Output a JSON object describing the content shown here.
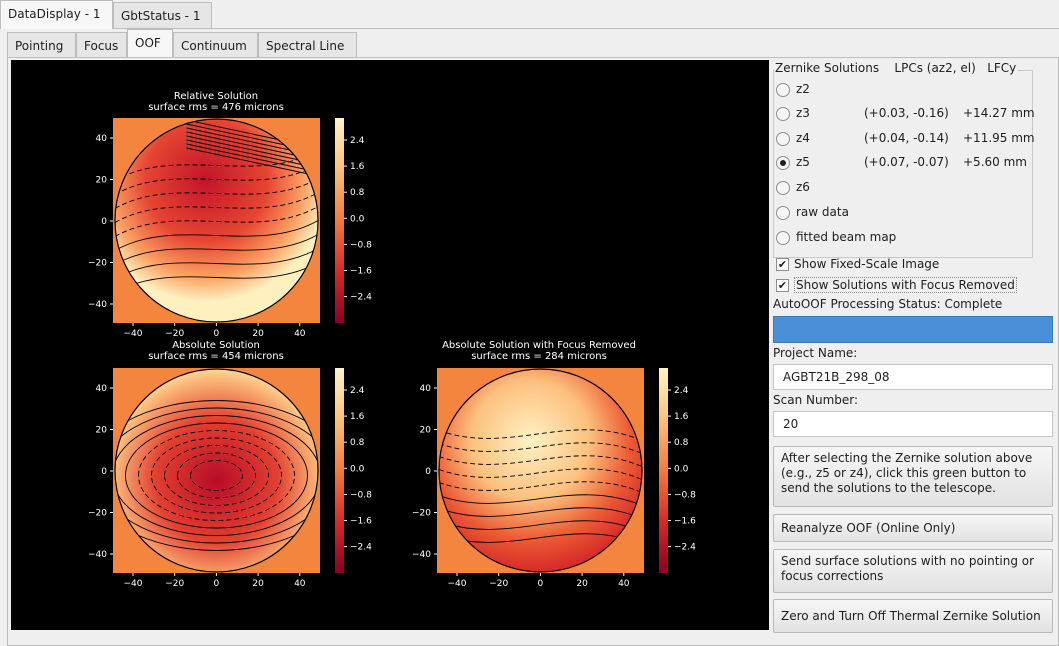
{
  "window_tabs": [
    {
      "label": "DataDisplay - 1"
    },
    {
      "label": "GbtStatus - 1"
    }
  ],
  "sub_tabs": [
    {
      "label": "Pointing"
    },
    {
      "label": "Focus"
    },
    {
      "label": "OOF"
    },
    {
      "label": "Continuum"
    },
    {
      "label": "Spectral Line"
    }
  ],
  "plots": [
    {
      "title": "Relative Solution",
      "subtitle": "surface rms = 476 microns"
    },
    {
      "title": "Absolute Solution",
      "subtitle": "surface rms = 454 microns"
    },
    {
      "title": "Absolute Solution with Focus Removed",
      "subtitle": "surface rms = 284 microns"
    }
  ],
  "axis_ticks": {
    "x": [
      "−40",
      "−20",
      "0",
      "20",
      "40"
    ],
    "y": [
      "40",
      "20",
      "0",
      "−20",
      "−40"
    ]
  },
  "colorbar_ticks": [
    "2.4",
    "1.6",
    "0.8",
    "0.0",
    "−0.8",
    "−1.6",
    "−2.4"
  ],
  "colors": {
    "accent": "#4a90d9",
    "plot_bg": "#000000",
    "colormap_high": "#fff5c8",
    "colormap_low": "#c0102a"
  },
  "zernike": {
    "title": "Zernike Solutions",
    "lpc_header": "LPCs (az2, el)",
    "lfc_header": "LFCy",
    "options": [
      {
        "label": "z2",
        "lpc": "",
        "lfc": ""
      },
      {
        "label": "z3",
        "lpc": "(+0.03, -0.16)",
        "lfc": "+14.27 mm"
      },
      {
        "label": "z4",
        "lpc": "(+0.04, -0.14)",
        "lfc": "+11.95 mm"
      },
      {
        "label": "z5",
        "lpc": "(+0.07, -0.07)",
        "lfc": "+5.60 mm"
      },
      {
        "label": "z6",
        "lpc": "",
        "lfc": ""
      },
      {
        "label": "raw data",
        "lpc": "",
        "lfc": ""
      },
      {
        "label": "fitted beam map",
        "lpc": "",
        "lfc": ""
      }
    ],
    "selected": "z5"
  },
  "checks": [
    {
      "label": "Show Fixed-Scale Image",
      "checked": true
    },
    {
      "label": "Show Solutions with Focus Removed",
      "checked": true
    }
  ],
  "status": {
    "text": "AutoOOF Processing Status: Complete"
  },
  "project": {
    "label": "Project Name:",
    "value": "AGBT21B_298_08"
  },
  "scan": {
    "label": "Scan Number:",
    "value": "20"
  },
  "buttons": {
    "send_green": "After selecting the Zernike solution above (e.g., z5 or z4), click this green button to send the solutions to the telescope.",
    "reanalyze": "Reanalyze OOF (Online Only)",
    "send_no_pointing": "Send surface solutions with no pointing or focus corrections",
    "zero_thermal": "Zero and Turn Off Thermal Zernike Solution"
  }
}
